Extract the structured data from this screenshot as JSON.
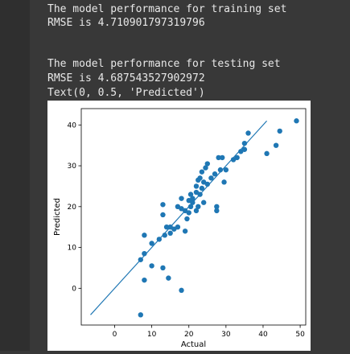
{
  "output": {
    "lines": [
      "The model performance for training set",
      "RMSE is 4.710901797319796",
      "",
      "",
      "The model performance for testing set",
      "RMSE is 4.687543527902972",
      "Text(0, 0.5, 'Predicted')"
    ]
  },
  "chart_data": {
    "type": "scatter",
    "xlabel": "Actual",
    "ylabel": "Predicted",
    "xlim": [
      -9,
      51.5
    ],
    "ylim": [
      -9,
      44
    ],
    "xticks": [
      0,
      10,
      20,
      30,
      40,
      50
    ],
    "yticks": [
      0,
      10,
      20,
      30,
      40
    ],
    "xtick_labels": [
      "0",
      "10",
      "20",
      "30",
      "40",
      "50"
    ],
    "ytick_labels": [
      "0",
      "10",
      "20",
      "30",
      "40"
    ],
    "grid": false,
    "point_color": "#1f77b4",
    "line": {
      "x": [
        -6.5,
        41
      ],
      "y": [
        -6.5,
        41
      ]
    },
    "points": [
      [
        7,
        -6.5
      ],
      [
        7,
        7
      ],
      [
        8,
        2
      ],
      [
        8,
        8.5
      ],
      [
        8,
        13
      ],
      [
        10,
        5.5
      ],
      [
        10,
        11
      ],
      [
        12,
        12
      ],
      [
        13,
        5
      ],
      [
        13,
        18
      ],
      [
        13,
        20.5
      ],
      [
        13.5,
        13
      ],
      [
        14,
        15
      ],
      [
        14.5,
        2.5
      ],
      [
        15,
        13.5
      ],
      [
        15,
        15
      ],
      [
        16,
        14.5
      ],
      [
        17,
        20
      ],
      [
        17,
        15
      ],
      [
        18,
        -0.5
      ],
      [
        18,
        19.5
      ],
      [
        18,
        22
      ],
      [
        19,
        19
      ],
      [
        19,
        14
      ],
      [
        19.5,
        17
      ],
      [
        20,
        18.5
      ],
      [
        20,
        21.5
      ],
      [
        20.5,
        20
      ],
      [
        20.5,
        23
      ],
      [
        21,
        21
      ],
      [
        21,
        22
      ],
      [
        22,
        19
      ],
      [
        22,
        23.5
      ],
      [
        22,
        25
      ],
      [
        22.5,
        20
      ],
      [
        22.5,
        26.5
      ],
      [
        23,
        23
      ],
      [
        23,
        27
      ],
      [
        23.5,
        24.5
      ],
      [
        23.5,
        28.5
      ],
      [
        24,
        21
      ],
      [
        24,
        26
      ],
      [
        24.5,
        29.5
      ],
      [
        25,
        25.5
      ],
      [
        25,
        30.5
      ],
      [
        26,
        27
      ],
      [
        27,
        28
      ],
      [
        27.5,
        19
      ],
      [
        27.5,
        20
      ],
      [
        28,
        32
      ],
      [
        28.5,
        29
      ],
      [
        29,
        32
      ],
      [
        29.5,
        26
      ],
      [
        30,
        29
      ],
      [
        32,
        31.5
      ],
      [
        33,
        32
      ],
      [
        34,
        33.5
      ],
      [
        35,
        35.5
      ],
      [
        35,
        34
      ],
      [
        36,
        38
      ],
      [
        41,
        33
      ],
      [
        43.5,
        35
      ],
      [
        44.5,
        38.5
      ],
      [
        49,
        41
      ]
    ]
  }
}
